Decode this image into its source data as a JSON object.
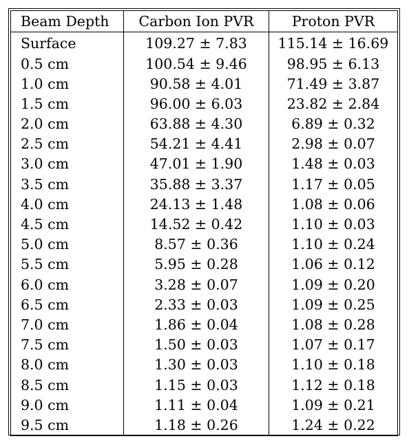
{
  "table": {
    "headers": [
      "Beam Depth",
      "Carbon Ion PVR",
      "Proton PVR"
    ],
    "rows": [
      [
        "Surface",
        "109.27 ± 7.83",
        "115.14 ± 16.69"
      ],
      [
        "0.5 cm",
        "100.54 ± 9.46",
        "98.95 ± 6.13"
      ],
      [
        "1.0 cm",
        "90.58 ± 4.01",
        "71.49 ± 3.87"
      ],
      [
        "1.5 cm",
        "96.00 ± 6.03",
        "23.82 ± 2.84"
      ],
      [
        "2.0 cm",
        "63.88 ± 4.30",
        "6.89 ± 0.32"
      ],
      [
        "2.5 cm",
        "54.21 ± 4.41",
        "2.98 ± 0.07"
      ],
      [
        "3.0 cm",
        "47.01 ± 1.90",
        "1.48 ± 0.03"
      ],
      [
        "3.5 cm",
        "35.88 ± 3.37",
        "1.17 ± 0.05"
      ],
      [
        "4.0 cm",
        "24.13 ± 1.48",
        "1.08 ± 0.06"
      ],
      [
        "4.5 cm",
        "14.52 ± 0.42",
        "1.10 ± 0.03"
      ],
      [
        "5.0 cm",
        "8.57 ± 0.36",
        "1.10 ± 0.24"
      ],
      [
        "5.5 cm",
        "5.95 ± 0.28",
        "1.06 ± 0.12"
      ],
      [
        "6.0 cm",
        "3.28 ± 0.07",
        "1.09 ± 0.20"
      ],
      [
        "6.5 cm",
        "2.33 ± 0.03",
        "1.09 ± 0.25"
      ],
      [
        "7.0 cm",
        "1.86 ± 0.04",
        "1.08 ± 0.28"
      ],
      [
        "7.5 cm",
        "1.50 ± 0.03",
        "1.07 ± 0.17"
      ],
      [
        "8.0 cm",
        "1.30 ± 0.03",
        "1.10 ± 0.18"
      ],
      [
        "8.5 cm",
        "1.15 ± 0.03",
        "1.12 ± 0.18"
      ],
      [
        "9.0 cm",
        "1.11 ± 0.04",
        "1.09 ± 0.21"
      ],
      [
        "9.5 cm",
        "1.18 ± 0.26",
        "1.24 ± 0.22"
      ]
    ]
  }
}
